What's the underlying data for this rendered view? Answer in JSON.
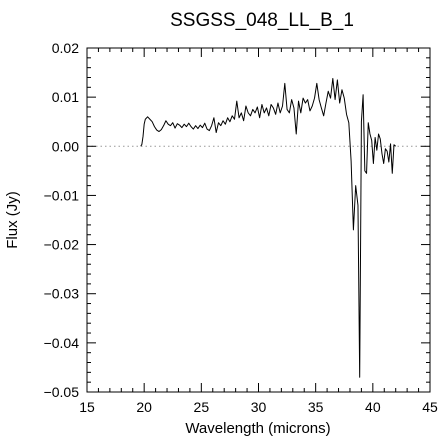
{
  "chart_data": {
    "type": "line",
    "title": "SSGSS_048_LL_B_1",
    "xlabel": "Wavelength (microns)",
    "ylabel": "Flux (Jy)",
    "xlim": [
      15,
      45
    ],
    "ylim": [
      -0.05,
      0.02
    ],
    "xticks": [
      15,
      20,
      25,
      30,
      35,
      40,
      45
    ],
    "xtick_labels": [
      "15",
      "20",
      "25",
      "30",
      "35",
      "40",
      "45"
    ],
    "yticks": [
      -0.05,
      -0.04,
      -0.03,
      -0.02,
      -0.01,
      0.0,
      0.01,
      0.02
    ],
    "ytick_labels": [
      "−0.05",
      "−0.04",
      "−0.03",
      "−0.02",
      "−0.01",
      "0.00",
      "0.01",
      "0.02"
    ],
    "reference_line": {
      "y": 0.0,
      "style": "dotted"
    },
    "series": [
      {
        "color": "#000000",
        "points": [
          [
            19.7,
            0.0
          ],
          [
            19.8,
            0.0004
          ],
          [
            19.9,
            0.002
          ],
          [
            20.0,
            0.0045
          ],
          [
            20.1,
            0.0055
          ],
          [
            20.3,
            0.006
          ],
          [
            20.5,
            0.0055
          ],
          [
            20.7,
            0.005
          ],
          [
            20.9,
            0.004
          ],
          [
            21.1,
            0.0033
          ],
          [
            21.3,
            0.003
          ],
          [
            21.5,
            0.0034
          ],
          [
            21.7,
            0.0042
          ],
          [
            21.9,
            0.0052
          ],
          [
            22.1,
            0.0045
          ],
          [
            22.3,
            0.0042
          ],
          [
            22.5,
            0.0048
          ],
          [
            22.7,
            0.0037
          ],
          [
            22.9,
            0.0046
          ],
          [
            23.1,
            0.0043
          ],
          [
            23.3,
            0.0038
          ],
          [
            23.5,
            0.0045
          ],
          [
            23.7,
            0.004
          ],
          [
            23.9,
            0.0047
          ],
          [
            24.1,
            0.004
          ],
          [
            24.3,
            0.0035
          ],
          [
            24.5,
            0.0042
          ],
          [
            24.7,
            0.0036
          ],
          [
            24.9,
            0.0043
          ],
          [
            25.1,
            0.0038
          ],
          [
            25.3,
            0.0047
          ],
          [
            25.5,
            0.0035
          ],
          [
            25.7,
            0.0032
          ],
          [
            25.9,
            0.0042
          ],
          [
            26.1,
            0.0058
          ],
          [
            26.3,
            0.0028
          ],
          [
            26.5,
            0.0048
          ],
          [
            26.7,
            0.0042
          ],
          [
            26.9,
            0.0052
          ],
          [
            27.1,
            0.0045
          ],
          [
            27.3,
            0.0058
          ],
          [
            27.5,
            0.005
          ],
          [
            27.7,
            0.0062
          ],
          [
            27.9,
            0.0055
          ],
          [
            28.1,
            0.0092
          ],
          [
            28.3,
            0.0058
          ],
          [
            28.5,
            0.0068
          ],
          [
            28.7,
            0.0052
          ],
          [
            28.9,
            0.0082
          ],
          [
            29.1,
            0.0068
          ],
          [
            29.3,
            0.0062
          ],
          [
            29.5,
            0.0075
          ],
          [
            29.7,
            0.0068
          ],
          [
            29.9,
            0.008
          ],
          [
            30.1,
            0.0058
          ],
          [
            30.3,
            0.0085
          ],
          [
            30.5,
            0.0068
          ],
          [
            30.7,
            0.0078
          ],
          [
            30.9,
            0.0062
          ],
          [
            31.1,
            0.0085
          ],
          [
            31.3,
            0.0078
          ],
          [
            31.5,
            0.0065
          ],
          [
            31.7,
            0.0088
          ],
          [
            31.9,
            0.0068
          ],
          [
            32.1,
            0.0082
          ],
          [
            32.3,
            0.0128
          ],
          [
            32.5,
            0.0075
          ],
          [
            32.7,
            0.0068
          ],
          [
            32.9,
            0.0095
          ],
          [
            33.1,
            0.0078
          ],
          [
            33.3,
            0.0025
          ],
          [
            33.5,
            0.0092
          ],
          [
            33.7,
            0.0068
          ],
          [
            33.9,
            0.0098
          ],
          [
            34.1,
            0.0088
          ],
          [
            34.3,
            0.0095
          ],
          [
            34.5,
            0.0072
          ],
          [
            34.7,
            0.0082
          ],
          [
            34.9,
            0.0098
          ],
          [
            35.1,
            0.0128
          ],
          [
            35.3,
            0.0095
          ],
          [
            35.5,
            0.0078
          ],
          [
            35.7,
            0.0062
          ],
          [
            35.9,
            0.0088
          ],
          [
            36.1,
            0.0112
          ],
          [
            36.3,
            0.0098
          ],
          [
            36.5,
            0.0138
          ],
          [
            36.7,
            0.0095
          ],
          [
            36.9,
            0.0135
          ],
          [
            37.1,
            0.0088
          ],
          [
            37.3,
            0.0115
          ],
          [
            37.5,
            0.0098
          ],
          [
            37.7,
            0.0065
          ],
          [
            37.9,
            0.0048
          ],
          [
            38.1,
            -0.003
          ],
          [
            38.3,
            -0.017
          ],
          [
            38.5,
            -0.008
          ],
          [
            38.7,
            -0.012
          ],
          [
            38.85,
            -0.047
          ],
          [
            39.0,
            0.005
          ],
          [
            39.15,
            0.0105
          ],
          [
            39.3,
            -0.005
          ],
          [
            39.45,
            -0.0055
          ],
          [
            39.6,
            0.0048
          ],
          [
            39.75,
            0.0025
          ],
          [
            39.9,
            0.0012
          ],
          [
            40.05,
            -0.0035
          ],
          [
            40.2,
            0.0018
          ],
          [
            40.35,
            -0.0008
          ],
          [
            40.5,
            0.0025
          ],
          [
            40.65,
            0.0015
          ],
          [
            40.8,
            -0.0015
          ],
          [
            40.95,
            -0.0035
          ],
          [
            41.1,
            -0.0005
          ],
          [
            41.25,
            -0.001
          ],
          [
            41.4,
            -0.0032
          ],
          [
            41.55,
            0.0005
          ],
          [
            41.7,
            -0.0055
          ],
          [
            41.85,
            0.0003
          ],
          [
            42.0,
            0.0
          ]
        ]
      }
    ]
  }
}
